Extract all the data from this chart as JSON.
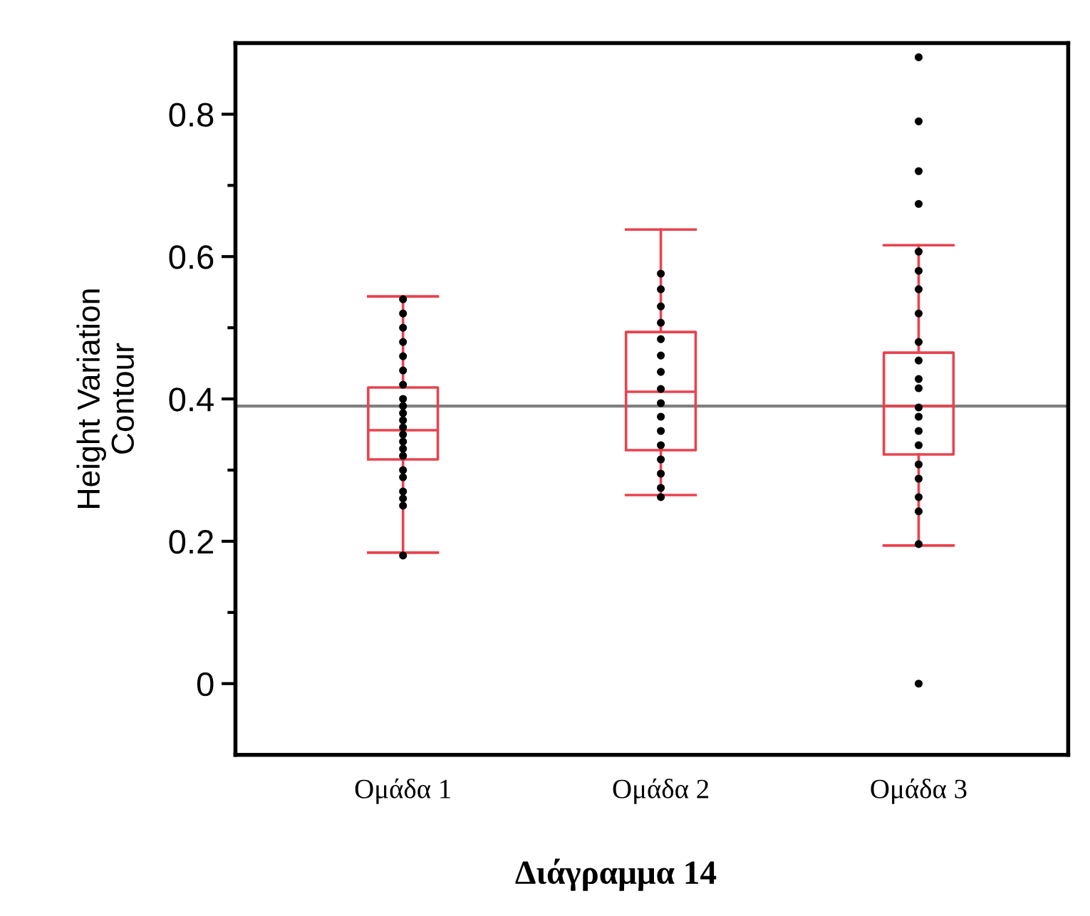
{
  "chart_data": {
    "type": "box",
    "title": "Διάγραμμα 14",
    "ylabel": "Height Variation\nContour",
    "categories": [
      "Ομάδα 1",
      "Ομάδα 2",
      "Ομάδα 3"
    ],
    "series": [
      {
        "color": "#e8434f",
        "boxes": [
          {
            "low": 0.184,
            "q1": 0.315,
            "median": 0.356,
            "q3": 0.416,
            "high": 0.544
          },
          {
            "low": 0.265,
            "q1": 0.328,
            "median": 0.41,
            "q3": 0.494,
            "high": 0.638
          },
          {
            "low": 0.194,
            "q1": 0.322,
            "median": 0.39,
            "q3": 0.465,
            "high": 0.616,
            "outliers": [
              0.88,
              0.79,
              0.72,
              0.674,
              0.0
            ]
          }
        ]
      },
      {
        "type": "scatter",
        "color": "#000000",
        "x": [
          "Ομάδα 1",
          "Ομάδα 1",
          "Ομάδα 1",
          "Ομάδα 1",
          "Ομάδα 1",
          "Ομάδα 1",
          "Ομάδα 1",
          "Ομάδα 1",
          "Ομάδα 1",
          "Ομάδα 1",
          "Ομάδα 1",
          "Ομάδα 1",
          "Ομάδα 1",
          "Ομάδα 1",
          "Ομάδα 1",
          "Ομάδα 1",
          "Ομάδα 1",
          "Ομάδα 1",
          "Ομάδα 1",
          "Ομάδα 1",
          "Ομάδα 1",
          "Ομάδα 1",
          "Ομάδα 2",
          "Ομάδα 2",
          "Ομάδα 2",
          "Ομάδα 2",
          "Ομάδα 2",
          "Ομάδα 2",
          "Ομάδα 2",
          "Ομάδα 2",
          "Ομάδα 2",
          "Ομάδα 2",
          "Ομάδα 2",
          "Ομάδα 2",
          "Ομάδα 2",
          "Ομάδα 2",
          "Ομάδα 2",
          "Ομάδα 2",
          "Ομάδα 3",
          "Ομάδα 3",
          "Ομάδα 3",
          "Ομάδα 3",
          "Ομάδα 3",
          "Ομάδα 3",
          "Ομάδα 3",
          "Ομάδα 3",
          "Ομάδα 3",
          "Ομάδα 3",
          "Ομάδα 3",
          "Ομάδα 3",
          "Ομάδα 3",
          "Ομάδα 3",
          "Ομάδα 3",
          "Ομάδα 3",
          "Ομάδα 3"
        ],
        "values": [
          0.54,
          0.52,
          0.5,
          0.48,
          0.46,
          0.44,
          0.42,
          0.4,
          0.39,
          0.38,
          0.37,
          0.36,
          0.35,
          0.34,
          0.33,
          0.32,
          0.3,
          0.29,
          0.27,
          0.26,
          0.25,
          0.18,
          0.576,
          0.554,
          0.53,
          0.507,
          0.484,
          0.461,
          0.438,
          0.414,
          0.394,
          0.375,
          0.355,
          0.335,
          0.315,
          0.295,
          0.275,
          0.262,
          0.607,
          0.58,
          0.554,
          0.52,
          0.48,
          0.454,
          0.428,
          0.415,
          0.388,
          0.375,
          0.355,
          0.335,
          0.308,
          0.288,
          0.262,
          0.242,
          0.196
        ]
      }
    ],
    "ref_lines": [
      {
        "axis": "y",
        "value": 0.39,
        "color": "#808080"
      }
    ],
    "ylim": [
      -0.1,
      0.9
    ],
    "yticks": [
      0,
      {
        "value": 0.1,
        "label": null
      },
      0.2,
      {
        "value": 0.3,
        "label": null
      },
      0.4,
      {
        "value": 0.5,
        "label": null
      },
      0.6,
      {
        "value": 0.7,
        "label": null
      },
      0.8
    ],
    "grid": false,
    "legend": false
  }
}
